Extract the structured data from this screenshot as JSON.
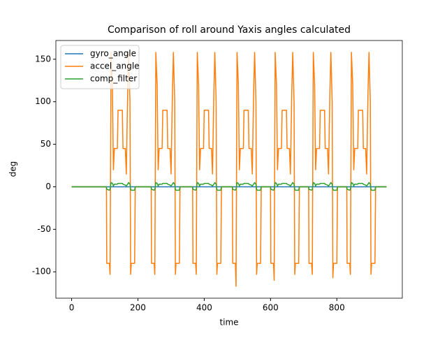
{
  "chart_data": {
    "type": "line",
    "title": "Comparison of roll around Yaxis angles calculated",
    "x_label": "time",
    "y_label": "deg",
    "x": [
      0,
      105,
      106,
      114,
      116,
      119,
      123,
      126,
      129,
      138,
      140,
      153,
      155,
      162,
      165,
      169,
      172,
      176,
      178,
      180,
      190,
      192,
      240,
      241,
      249,
      251,
      254,
      258,
      261,
      264,
      273,
      275,
      288,
      290,
      297,
      300,
      304,
      307,
      311,
      313,
      315,
      325,
      327,
      365,
      366,
      374,
      376,
      379,
      383,
      386,
      389,
      398,
      400,
      413,
      415,
      422,
      425,
      429,
      432,
      436,
      438,
      440,
      450,
      452,
      485,
      486,
      494,
      496,
      499,
      503,
      506,
      509,
      518,
      520,
      533,
      535,
      542,
      545,
      549,
      552,
      556,
      558,
      560,
      570,
      572,
      600,
      601,
      609,
      611,
      614,
      618,
      621,
      624,
      633,
      635,
      648,
      650,
      657,
      660,
      664,
      667,
      671,
      673,
      675,
      685,
      687,
      715,
      716,
      724,
      726,
      729,
      733,
      736,
      739,
      748,
      750,
      763,
      765,
      772,
      775,
      779,
      782,
      786,
      788,
      790,
      800,
      802,
      830,
      831,
      839,
      841,
      844,
      848,
      851,
      854,
      863,
      865,
      878,
      880,
      887,
      890,
      894,
      897,
      901,
      903,
      905,
      915,
      917,
      950
    ],
    "series": [
      {
        "name": "gyro_angle",
        "color": "#1f77b4",
        "x": [
          0,
          950
        ],
        "values": [
          0,
          0
        ]
      },
      {
        "name": "accel_angle",
        "color": "#ff7f0e",
        "values": [
          0,
          0,
          -90,
          -90,
          -103,
          158,
          120,
          20,
          45,
          45,
          90,
          90,
          45,
          45,
          15,
          110,
          158,
          100,
          -103,
          -90,
          -90,
          0,
          0,
          -90,
          -90,
          -103,
          158,
          120,
          20,
          45,
          45,
          90,
          90,
          45,
          45,
          15,
          110,
          158,
          100,
          -103,
          -90,
          -90,
          0,
          0,
          -90,
          -90,
          -103,
          158,
          120,
          20,
          45,
          45,
          90,
          90,
          45,
          45,
          15,
          110,
          158,
          100,
          -103,
          -90,
          -90,
          0,
          0,
          -90,
          -90,
          -117,
          158,
          120,
          20,
          45,
          45,
          90,
          90,
          45,
          45,
          15,
          110,
          158,
          100,
          -103,
          -90,
          -90,
          0,
          0,
          -90,
          -90,
          -110,
          158,
          120,
          20,
          45,
          45,
          90,
          90,
          45,
          45,
          15,
          110,
          158,
          100,
          -103,
          -90,
          -90,
          0,
          0,
          -90,
          -90,
          -103,
          158,
          120,
          20,
          45,
          45,
          90,
          90,
          45,
          45,
          15,
          110,
          158,
          100,
          -107,
          -90,
          -90,
          0,
          0,
          -90,
          -90,
          -103,
          158,
          120,
          20,
          45,
          45,
          90,
          90,
          45,
          45,
          15,
          110,
          158,
          100,
          -103,
          -90,
          -90,
          0,
          0
        ]
      },
      {
        "name": "comp_filter",
        "color": "#2ca02c",
        "values": [
          0,
          0,
          -3,
          -4,
          -3,
          5,
          4,
          1,
          3,
          3,
          4,
          4,
          3,
          2,
          1,
          3,
          5,
          3,
          -3,
          -4,
          -4,
          0,
          0,
          -3,
          -4,
          -3,
          5,
          4,
          1,
          3,
          3,
          4,
          4,
          3,
          2,
          1,
          3,
          5,
          3,
          -3,
          -4,
          -4,
          0,
          0,
          -3,
          -4,
          -3,
          5,
          4,
          1,
          3,
          3,
          4,
          4,
          3,
          2,
          1,
          3,
          5,
          3,
          -3,
          -4,
          -4,
          0,
          0,
          -3,
          -4,
          -3,
          5,
          4,
          1,
          3,
          3,
          4,
          4,
          3,
          2,
          1,
          3,
          5,
          3,
          -3,
          -4,
          -4,
          0,
          0,
          -3,
          -4,
          -3,
          5,
          4,
          1,
          3,
          3,
          4,
          4,
          3,
          2,
          1,
          3,
          5,
          3,
          -3,
          -4,
          -4,
          0,
          0,
          -3,
          -4,
          -3,
          5,
          4,
          1,
          3,
          3,
          4,
          4,
          3,
          2,
          1,
          3,
          5,
          3,
          -3,
          -4,
          -4,
          0,
          0,
          -3,
          -4,
          -3,
          5,
          4,
          1,
          3,
          3,
          4,
          4,
          3,
          2,
          1,
          3,
          5,
          3,
          -3,
          -4,
          -4,
          0,
          0
        ]
      }
    ],
    "xlim": [
      -47.5,
      997.5
    ],
    "ylim": [
      -131,
      172
    ],
    "xticks": [
      0,
      200,
      400,
      600,
      800
    ],
    "yticks": [
      -100,
      -50,
      0,
      50,
      100,
      150
    ],
    "legend": "upper left",
    "grid": false
  }
}
